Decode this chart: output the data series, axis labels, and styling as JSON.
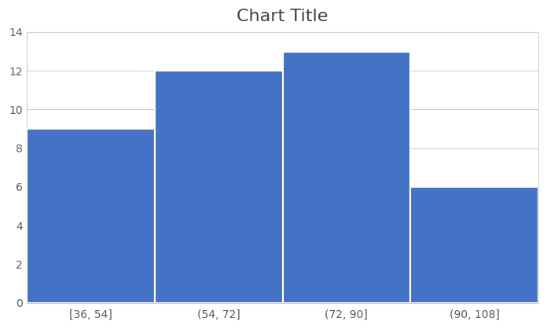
{
  "title": "Chart Title",
  "title_fontsize": 16,
  "title_color": "#404040",
  "categories": [
    "[36, 54]",
    "(54, 72]",
    "(72, 90]",
    "(90, 108]"
  ],
  "values": [
    9,
    12,
    13,
    6
  ],
  "bar_color": "#4472C4",
  "bar_edge_color": "#FFFFFF",
  "bar_edge_width": 1.5,
  "ylim": [
    0,
    14
  ],
  "yticks": [
    0,
    2,
    4,
    6,
    8,
    10,
    12,
    14
  ],
  "grid_color": "#D0D0D0",
  "grid_linewidth": 0.8,
  "background_color": "#FFFFFF",
  "plot_area_color": "#FFFFFF",
  "tick_label_fontsize": 10,
  "tick_label_color": "#595959",
  "spine_color": "#D0D0D0"
}
